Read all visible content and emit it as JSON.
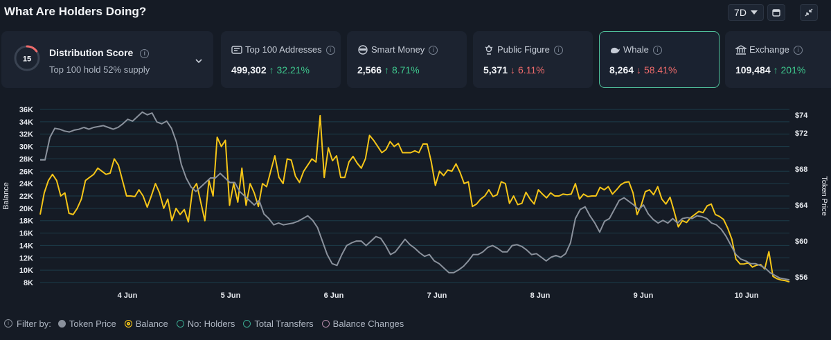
{
  "header": {
    "title": "What Are Holders Doing?",
    "range_label": "7D"
  },
  "distribution": {
    "score": "15",
    "title": "Distribution Score",
    "subtitle": "Top 100 hold 52% supply",
    "score_fraction": 0.15
  },
  "cards": [
    {
      "label": "Top 100 Addresses",
      "value": "499,302",
      "change": "32.21%",
      "direction": "up",
      "icon": "list-icon"
    },
    {
      "label": "Smart Money",
      "value": "2,566",
      "change": "8.71%",
      "direction": "up",
      "icon": "smart-money-icon"
    },
    {
      "label": "Public Figure",
      "value": "5,371",
      "change": "6.11%",
      "direction": "down",
      "icon": "public-figure-icon"
    },
    {
      "label": "Whale",
      "value": "8,264",
      "change": "58.41%",
      "direction": "down",
      "icon": "whale-icon"
    },
    {
      "label": "Exchange",
      "value": "109,484",
      "change": "201%",
      "direction": "up",
      "icon": "bank-icon"
    }
  ],
  "legend": {
    "filter_label": "Filter by:",
    "items": [
      {
        "label": "Token Price",
        "color": "#8a919c",
        "filled": true
      },
      {
        "label": "Balance",
        "color": "#f5c518",
        "filled": false
      },
      {
        "label": "No: Holders",
        "color": "#3aa890",
        "filled": false
      },
      {
        "label": "Total Transfers",
        "color": "#3aa890",
        "filled": false
      },
      {
        "label": "Balance Changes",
        "color": "#b48aa8",
        "filled": false
      }
    ]
  },
  "colors": {
    "balance": "#f5c518",
    "price": "#8a919c",
    "grid": "#1f4a5a",
    "up": "#3ec98e",
    "down": "#ef6b6b",
    "active_border": "#4fbf9a"
  },
  "chart_data": {
    "type": "line",
    "xlabel": "",
    "ylabel": "Balance",
    "y2label": "Token Price",
    "x_ticks": [
      "4 Jun",
      "5 Jun",
      "6 Jun",
      "7 Jun",
      "8 Jun",
      "9 Jun",
      "10 Jun"
    ],
    "y_ticks": [
      "36K",
      "34K",
      "32K",
      "30K",
      "28K",
      "26K",
      "24K",
      "22K",
      "20K",
      "18K",
      "16K",
      "14K",
      "12K",
      "10K",
      "8K"
    ],
    "y2_ticks": [
      "$74",
      "$72",
      "$68",
      "$64",
      "$60",
      "$56"
    ],
    "ylim": [
      8000,
      36000
    ],
    "y2lim": [
      55.4,
      74.6
    ],
    "x_range": [
      "3 Jun",
      "10 Jun"
    ],
    "grid": true,
    "series": [
      {
        "name": "Balance",
        "axis": "left",
        "values": [
          19000,
          22500,
          24500,
          25500,
          24500,
          22000,
          22500,
          19200,
          19000,
          20000,
          21500,
          24500,
          25000,
          25500,
          26500,
          26000,
          25500,
          25700,
          28000,
          27000,
          24500,
          22000,
          22000,
          21900,
          23000,
          22000,
          20200,
          22000,
          24000,
          22500,
          20000,
          21500,
          18000,
          20000,
          19000,
          19800,
          17800,
          23000,
          24000,
          21000,
          18000,
          24500,
          22000,
          31500,
          30000,
          31000,
          20500,
          24000,
          21000,
          26500,
          20500,
          24000,
          22500,
          20300,
          24000,
          23500,
          26000,
          28500,
          25000,
          24000,
          28000,
          27800,
          25200,
          24200,
          26000,
          27000,
          28000,
          27500,
          35000,
          25000,
          29800,
          27700,
          28500,
          25000,
          25000,
          27500,
          28400,
          27300,
          26500,
          28000,
          31800,
          31000,
          30000,
          29000,
          29500,
          30800,
          30000,
          30500,
          29000,
          29000,
          29000,
          29300,
          29000,
          30400,
          30400,
          27500,
          23700,
          26000,
          25300,
          26200,
          26000,
          27200,
          25800,
          24000,
          24300,
          20300,
          20700,
          21500,
          22000,
          23000,
          21900,
          22200,
          24300,
          24000,
          20800,
          22000,
          20600,
          20800,
          22600,
          21500,
          20700,
          23000,
          22300,
          21700,
          22500,
          22000,
          22000,
          22300,
          22200,
          22300,
          24000,
          21500,
          22300,
          21900,
          22000,
          22000,
          23400,
          23000,
          23500,
          22300,
          23000,
          23800,
          24200,
          24300,
          22500,
          19000,
          20500,
          22700,
          23000,
          22200,
          23500,
          21500,
          20700,
          21800,
          19500,
          17000,
          18000,
          17700,
          18500,
          19000,
          19500,
          19300,
          20400,
          20700,
          19000,
          18700,
          18200,
          16800,
          15000,
          11800,
          11000,
          11000,
          11200,
          10500,
          10800,
          10900,
          10200,
          13000,
          9000,
          8600,
          8400,
          8300,
          8100
        ]
      },
      {
        "name": "Token Price",
        "axis": "right",
        "values": [
          69,
          69,
          71.5,
          72.5,
          72.4,
          72.2,
          72.1,
          72.3,
          72.4,
          72.6,
          72.4,
          72.6,
          72.7,
          72.8,
          72.6,
          72.4,
          72.6,
          73,
          73.5,
          73.3,
          73.8,
          74.3,
          74,
          74.2,
          73.2,
          73,
          73.3,
          72.5,
          71,
          68.5,
          67,
          66,
          65.5,
          66,
          66.5,
          67,
          67,
          67.5,
          67,
          66.5,
          66.5,
          65.5,
          65,
          64.5,
          64,
          64.5,
          63,
          62.5,
          61.8,
          62,
          61.8,
          61.9,
          62,
          62.2,
          62.5,
          62.8,
          62.3,
          61.5,
          60,
          58.5,
          57.5,
          57.3,
          58.5,
          59.5,
          59.8,
          60,
          60,
          59.5,
          60,
          60.5,
          60.3,
          59.5,
          58.5,
          58.8,
          59.5,
          60.2,
          59.6,
          59.2,
          58.7,
          58.3,
          58.5,
          57.8,
          57.5,
          57,
          56.5,
          56.5,
          56.8,
          57.2,
          57.8,
          58.5,
          58.5,
          58.8,
          59.3,
          59.5,
          59.2,
          58.8,
          58.8,
          59.5,
          59.6,
          59.4,
          59,
          58.5,
          58.6,
          58.2,
          57.8,
          58.2,
          58.4,
          58.2,
          58.6,
          59.8,
          62.5,
          63.5,
          63.8,
          62.8,
          62,
          61,
          62.2,
          62.5,
          63.5,
          64.5,
          64.8,
          64.4,
          64,
          63.5,
          64,
          63,
          62.4,
          62,
          62.3,
          62,
          62.5,
          62,
          62.5,
          62.6,
          62.5,
          62.8,
          62.7,
          62.5,
          62,
          61.8,
          61.3,
          60.5,
          59.5,
          58.5,
          58,
          57.8,
          57.5,
          57.5,
          57.3,
          57,
          56.5,
          56.2,
          55.9,
          55.8,
          55.7
        ]
      }
    ]
  }
}
